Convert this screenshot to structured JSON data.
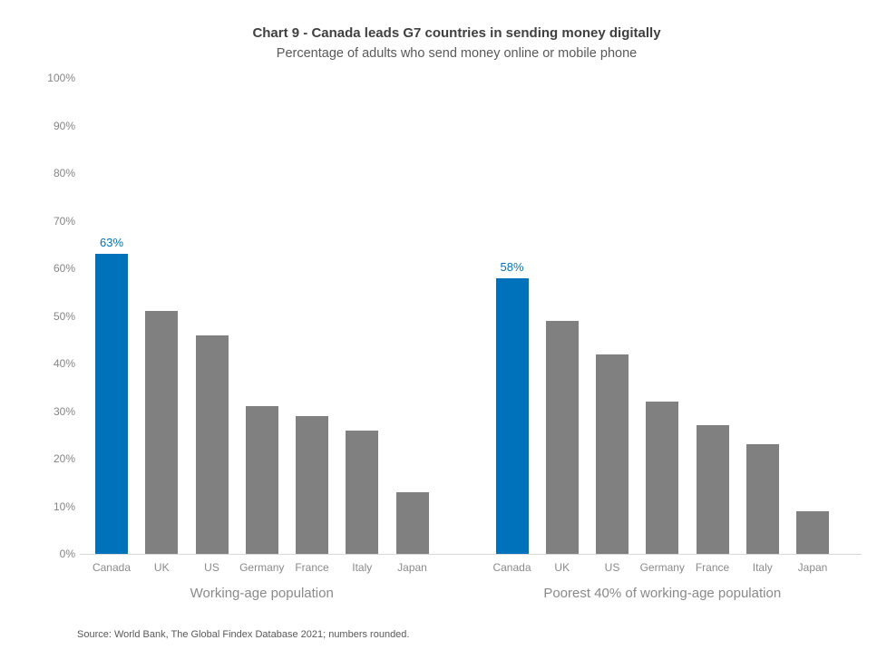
{
  "header": {
    "title": "Chart 9 - Canada leads G7 countries in sending money digitally",
    "subtitle": "Percentage of adults who send money online or mobile phone"
  },
  "chart_data": {
    "type": "bar",
    "title": "Chart 9 - Canada leads G7 countries in sending money digitally",
    "subtitle": "Percentage of adults who send money online or mobile phone",
    "xlabel": "",
    "ylabel": "",
    "ylim": [
      0,
      100
    ],
    "grid": "off",
    "legend": "none",
    "yticks": [
      {
        "value": 100,
        "label": "100%"
      },
      {
        "value": 90,
        "label": "90%"
      },
      {
        "value": 80,
        "label": "80%"
      },
      {
        "value": 70,
        "label": "70%"
      },
      {
        "value": 60,
        "label": "60%"
      },
      {
        "value": 50,
        "label": "50%"
      },
      {
        "value": 40,
        "label": "40%"
      },
      {
        "value": 30,
        "label": "30%"
      },
      {
        "value": 20,
        "label": "20%"
      },
      {
        "value": 10,
        "label": "10%"
      },
      {
        "value": 0,
        "label": "0%"
      }
    ],
    "categories": [
      "Canada",
      "UK",
      "US",
      "Germany",
      "France",
      "Italy",
      "Japan"
    ],
    "groups": [
      {
        "label": "Working-age population",
        "values": [
          63,
          51,
          46,
          31,
          29,
          26,
          13
        ]
      },
      {
        "label": "Poorest 40% of working-age population",
        "values": [
          58,
          49,
          42,
          32,
          27,
          23,
          9
        ]
      }
    ],
    "highlight_category": "Canada",
    "data_labels": [
      "63%",
      "58%"
    ],
    "colors": {
      "highlight_bar": "#0072bc",
      "bar": "#808080",
      "data_label": "#0072bc",
      "axis_line": "#d9d9d9"
    }
  },
  "footer": {
    "source": "Source: World Bank, The Global Findex Database 2021; numbers rounded."
  }
}
